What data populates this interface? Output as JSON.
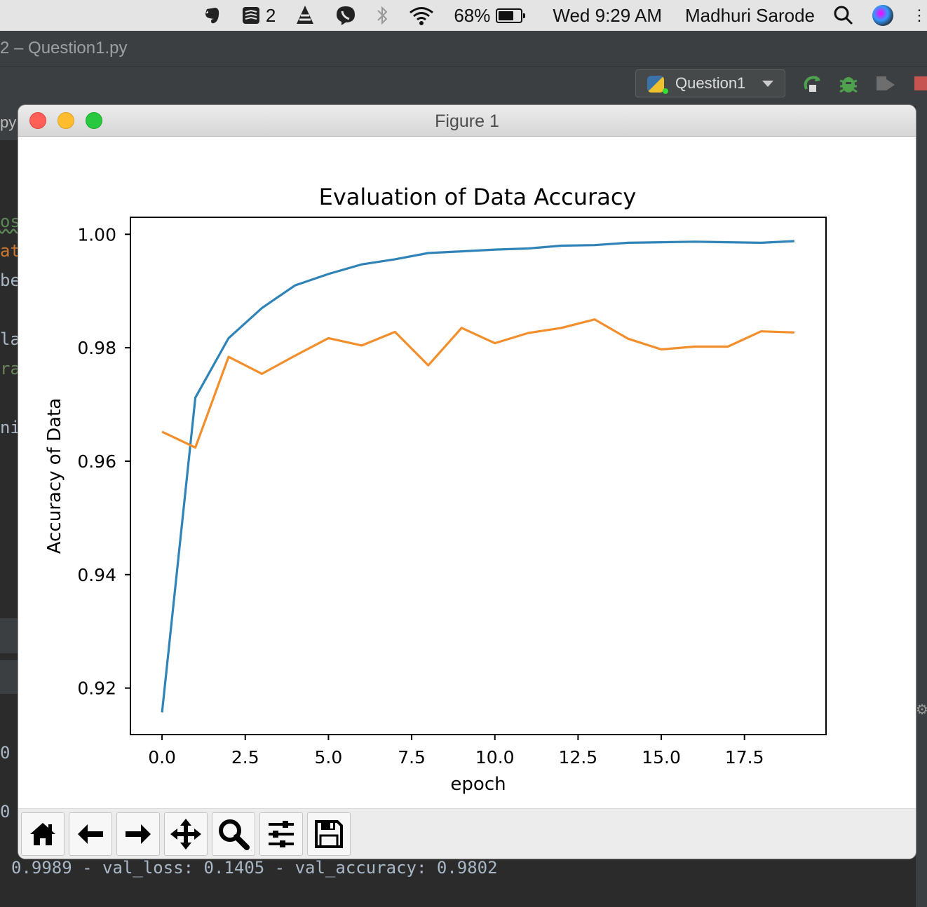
{
  "menubar": {
    "todoist_count": "2",
    "battery_percent": "68%",
    "battery_level": 0.68,
    "clock": "Wed 9:29 AM",
    "user": "Madhuri Sarode",
    "icons": [
      "evernote-icon",
      "todoist-icon",
      "vlc-icon",
      "viber-icon",
      "bluetooth-icon",
      "wifi-icon",
      "battery-icon",
      "spotlight-icon",
      "siri-icon"
    ]
  },
  "ide": {
    "window_title": "2 – Question1.py",
    "tab_fragment": "py",
    "run_config": "Question1",
    "code_fragments": [
      "os",
      "at",
      "be",
      "la",
      "ra",
      "ni"
    ],
    "console_prefixes": [
      "0",
      "0"
    ],
    "console_line": "0.9989 - val_loss: 0.1405 - val_accuracy: 0.9802"
  },
  "figure": {
    "window_title": "Figure 1",
    "toolbar": [
      "home-tool",
      "back-tool",
      "forward-tool",
      "pan-tool",
      "zoom-tool",
      "configure-subplots-tool",
      "save-tool"
    ]
  },
  "chart_data": {
    "type": "line",
    "title": "Evaluation of Data Accuracy",
    "xlabel": "epoch",
    "ylabel": "Accuracy of Data",
    "xlim": [
      -0.95,
      19.95
    ],
    "ylim": [
      0.9118,
      1.003
    ],
    "xticks": [
      "0.0",
      "2.5",
      "5.0",
      "7.5",
      "10.0",
      "12.5",
      "15.0",
      "17.5"
    ],
    "yticks": [
      "0.92",
      "0.94",
      "0.96",
      "0.98",
      "1.00"
    ],
    "x": [
      0,
      1,
      2,
      3,
      4,
      5,
      6,
      7,
      8,
      9,
      10,
      11,
      12,
      13,
      14,
      15,
      16,
      17,
      18,
      19
    ],
    "series": [
      {
        "color": "#2f83b7",
        "values": [
          0.9157,
          0.9712,
          0.9817,
          0.987,
          0.991,
          0.993,
          0.9947,
          0.9956,
          0.9967,
          0.997,
          0.9973,
          0.9975,
          0.998,
          0.9981,
          0.9985,
          0.9986,
          0.9987,
          0.9986,
          0.9985,
          0.9988
        ]
      },
      {
        "color": "#f28e2b",
        "values": [
          0.9652,
          0.9624,
          0.9784,
          0.9754,
          0.9786,
          0.9817,
          0.9804,
          0.9828,
          0.9769,
          0.9835,
          0.9808,
          0.9826,
          0.9835,
          0.985,
          0.9816,
          0.9797,
          0.9802,
          0.9802,
          0.9829,
          0.9827
        ]
      }
    ],
    "grid": false
  }
}
